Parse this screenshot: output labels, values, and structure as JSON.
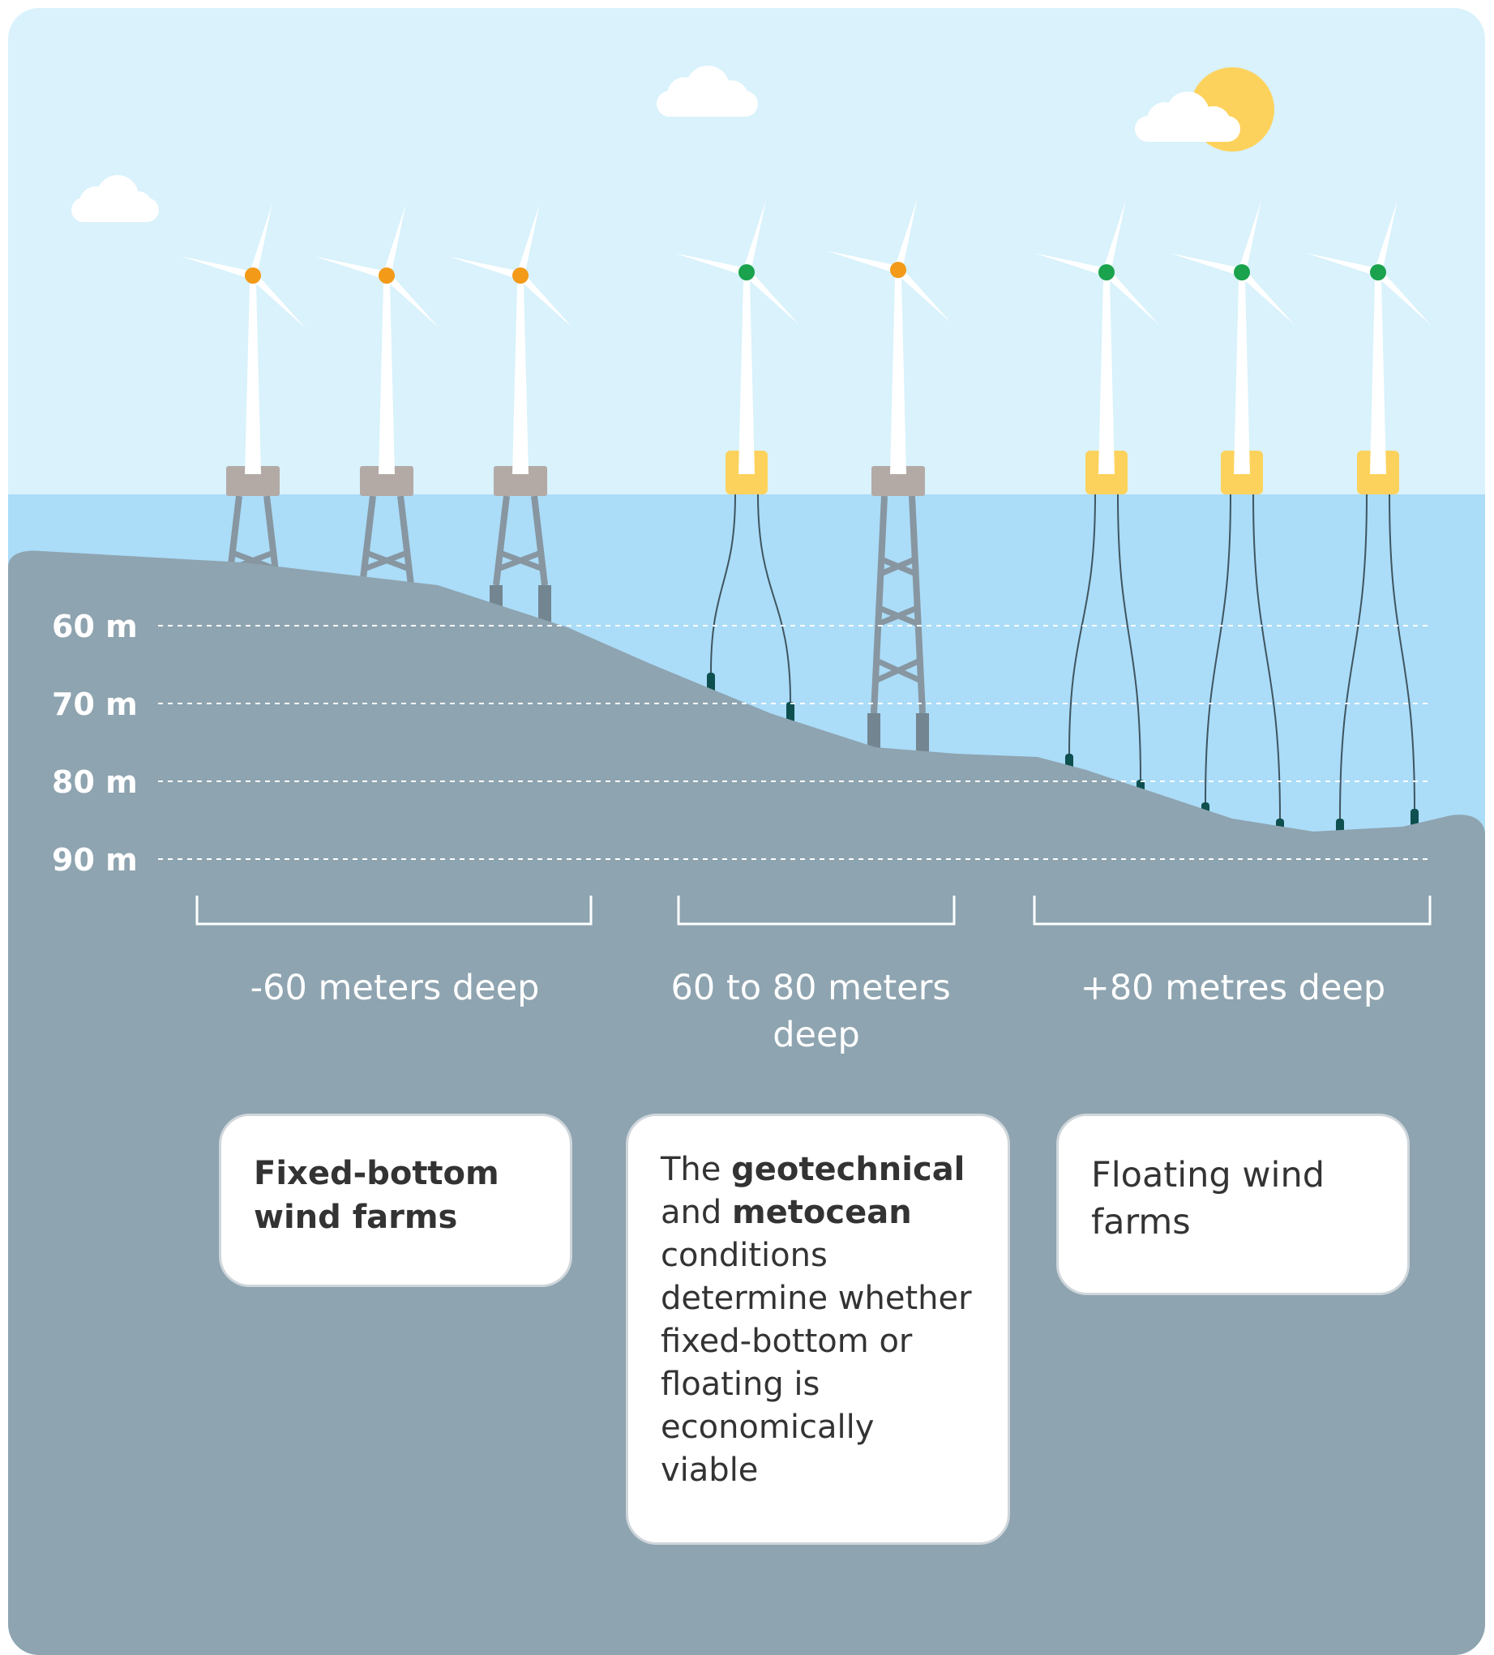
{
  "depth_axis": {
    "labels": [
      "60 m",
      "70 m",
      "80 m",
      "90 m"
    ]
  },
  "zones": [
    {
      "label_lines": [
        "-60 meters deep"
      ]
    },
    {
      "label_lines": [
        "60 to 80 meters",
        "deep"
      ]
    },
    {
      "label_lines": [
        "+80 metres deep"
      ]
    }
  ],
  "cards": {
    "fixed": {
      "lines": [
        "Fixed-bottom",
        "wind farms"
      ]
    },
    "middle": {
      "segments": [
        {
          "text": "The ",
          "bold": false
        },
        {
          "text": "geotechnical",
          "bold": true
        },
        {
          "text": "\n",
          "bold": false
        },
        {
          "text": "and ",
          "bold": false
        },
        {
          "text": "metocean",
          "bold": true
        },
        {
          "text": "\nconditions\ndetermine whether\nfixed-bottom or\nfloating is\neconomically\nviable",
          "bold": false
        }
      ]
    },
    "floating": {
      "lines": [
        "Floating wind",
        "farms"
      ]
    }
  },
  "turbines": [
    {
      "type": "fixed",
      "hub": "orange"
    },
    {
      "type": "fixed",
      "hub": "orange"
    },
    {
      "type": "fixed",
      "hub": "orange"
    },
    {
      "type": "floating",
      "hub": "green"
    },
    {
      "type": "fixed-tall",
      "hub": "orange"
    },
    {
      "type": "floating",
      "hub": "green"
    },
    {
      "type": "floating",
      "hub": "green"
    },
    {
      "type": "floating",
      "hub": "green"
    }
  ],
  "colors": {
    "sky": "#d9f2fc",
    "water": "#abdcf8",
    "seabed": "#8ea4b0",
    "fixed_platform": "#b3aaa6",
    "float_platform": "#fdd25c",
    "hub_orange": "#f39a18",
    "hub_green": "#1aa24c",
    "sun": "#fdd25c",
    "anchor": "#0e4f4f"
  }
}
